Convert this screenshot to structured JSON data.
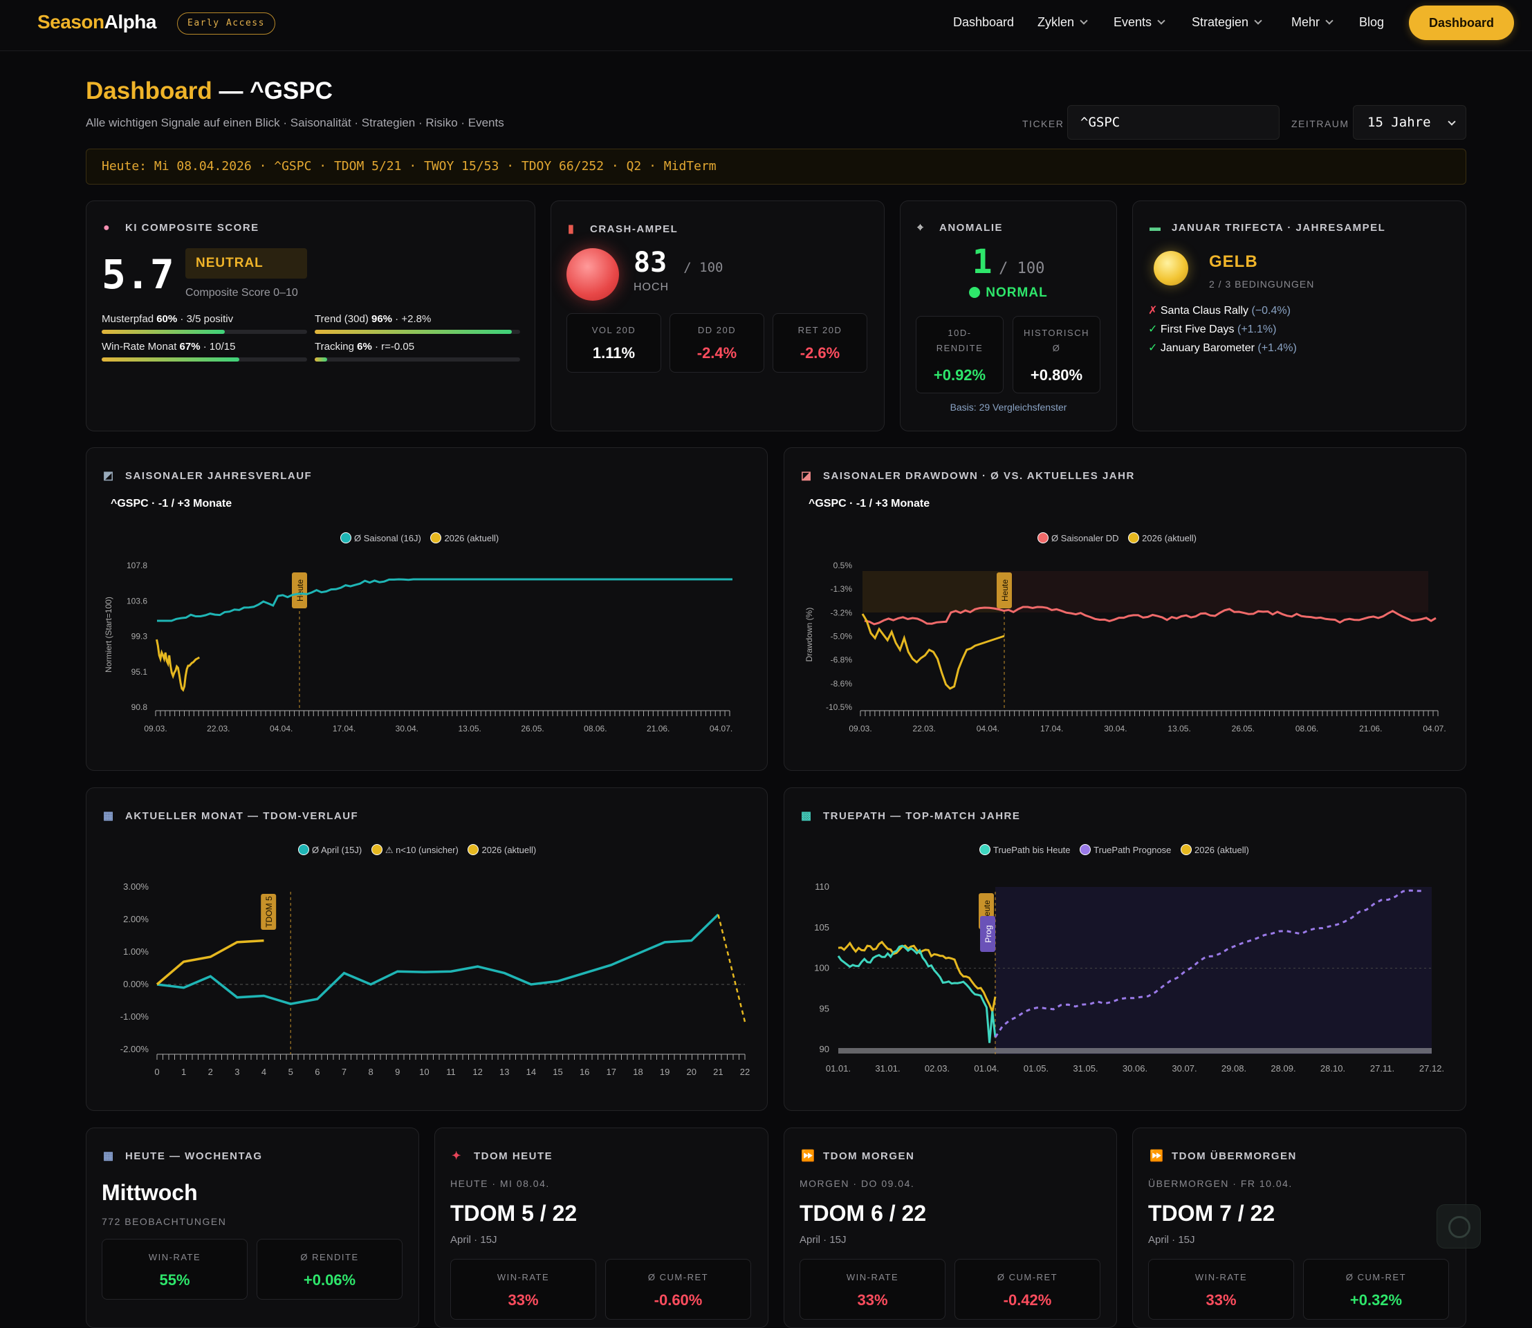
{
  "nav": {
    "logo_a": "Season",
    "logo_b": "Alpha",
    "badge": "Early Access",
    "items": [
      "Dashboard",
      "Zyklen",
      "Events",
      "Strategien",
      "Mehr",
      "Blog"
    ],
    "cta": "Dashboard"
  },
  "header": {
    "title_hl": "Dashboard",
    "title_rest": " — ^GSPC",
    "subtitle": "Alle wichtigen Signale auf einen Blick · Saisonalität · Strategien · Risiko · Events",
    "ticker_label": "TICKER",
    "ticker_value": "^GSPC",
    "zeitraum_label": "ZEITRAUM",
    "zeitraum_value": "15 Jahre"
  },
  "today_bar": "Heute: Mi 08.04.2026 · ^GSPC · TDOM 5/21 · TWOY 15/53 · TDOY 66/252 · Q2 · MidTerm",
  "ki": {
    "title": "KI COMPOSITE SCORE",
    "score": "5.7",
    "badge": "NEUTRAL",
    "caption": "Composite Score 0–10",
    "metrics": [
      {
        "name": "Musterpfad",
        "value": "60%",
        "extra": " · 3/5 positiv",
        "fill": 0.6
      },
      {
        "name": "Trend (30d)",
        "value": "96%",
        "extra": " · +2.8%",
        "fill": 0.96
      },
      {
        "name": "Win-Rate Monat",
        "value": "67%",
        "extra": " · 10/15",
        "fill": 0.67
      },
      {
        "name": "Tracking",
        "value": "6%",
        "extra": " · r=-0.05",
        "fill": 0.06
      }
    ]
  },
  "crash": {
    "title": "CRASH-AMPEL",
    "value": "83",
    "max": "/ 100",
    "level": "HOCH",
    "stats": [
      {
        "label": "VOL 20D",
        "value": "1.11%"
      },
      {
        "label": "DD 20D",
        "value": "-2.4%"
      },
      {
        "label": "RET 20D",
        "value": "-2.6%"
      }
    ]
  },
  "anomalie": {
    "title": "ANOMALIE",
    "value": "1",
    "max": "/ 100",
    "status": "NORMAL",
    "stats": [
      {
        "label1": "10D-",
        "label2": "RENDITE",
        "value": "+0.92%"
      },
      {
        "label1": "HISTORISCH",
        "label2": "Ø",
        "value": "+0.80%"
      }
    ],
    "basis": "Basis: 29 Vergleichsfenster"
  },
  "trifecta": {
    "title": "JANUAR TRIFECTA · JAHRESAMPEL",
    "status": "GELB",
    "conditions": "2 / 3 BEDINGUNGEN",
    "items": [
      {
        "mark": "✗",
        "name": "Santa Claus Rally",
        "value": "(−0.4%)"
      },
      {
        "mark": "✓",
        "name": "First Five Days",
        "value": "(+1.1%)"
      },
      {
        "mark": "✓",
        "name": "January Barometer",
        "value": "(+1.4%)"
      }
    ]
  },
  "season_chart": {
    "title": "SAISONALER JAHRESVERLAUF",
    "subtitle": "^GSPC · -1 / +3 Monate",
    "legend": [
      "Ø Saisonal (16J)",
      "2026 (aktuell)"
    ],
    "ylabel": "Normiert (Start=100)",
    "yticks": [
      "107.8",
      "103.6",
      "99.3",
      "95.1",
      "90.8"
    ],
    "xticks": [
      "09.03.",
      "22.03.",
      "04.04.",
      "17.04.",
      "30.04.",
      "13.05.",
      "26.05.",
      "08.06.",
      "21.06.",
      "04.07."
    ],
    "marker": "Heute"
  },
  "dd_chart": {
    "title": "SAISONALER DRAWDOWN · Ø VS. AKTUELLES JAHR",
    "subtitle": "^GSPC · -1 / +3 Monate",
    "legend": [
      "Ø Saisonaler DD",
      "2026 (aktuell)"
    ],
    "ylabel": "Drawdown (%)",
    "yticks": [
      "0.5%",
      "-1.3%",
      "-3.2%",
      "-5.0%",
      "-6.8%",
      "-8.6%",
      "-10.5%"
    ],
    "xticks": [
      "09.03.",
      "22.03.",
      "04.04.",
      "17.04.",
      "30.04.",
      "13.05.",
      "26.05.",
      "08.06.",
      "21.06.",
      "04.07."
    ],
    "marker": "Heute"
  },
  "tdom_chart": {
    "title": "AKTUELLER MONAT — TDOM-VERLAUF",
    "legend": [
      "Ø April (15J)",
      "⚠ n<10 (unsicher)",
      "2026 (aktuell)"
    ],
    "yticks": [
      "3.00%",
      "2.00%",
      "1.00%",
      "0.00%",
      "-1.00%",
      "-2.00%"
    ],
    "xticks": [
      "0",
      "1",
      "2",
      "3",
      "4",
      "5",
      "6",
      "7",
      "8",
      "9",
      "10",
      "11",
      "12",
      "13",
      "14",
      "15",
      "16",
      "17",
      "18",
      "19",
      "20",
      "21",
      "22"
    ],
    "marker": "TDOM 5"
  },
  "truepath_chart": {
    "title": "TRUEPATH — TOP-MATCH JAHRE",
    "legend": [
      "TruePath bis Heute",
      "TruePath Prognose",
      "2026 (aktuell)"
    ],
    "yticks": [
      "110",
      "105",
      "100",
      "95",
      "90"
    ],
    "xticks": [
      "01.01.",
      "31.01.",
      "02.03.",
      "01.04.",
      "01.05.",
      "31.05.",
      "30.06.",
      "30.07.",
      "29.08.",
      "28.09.",
      "28.10.",
      "27.11.",
      "27.12."
    ],
    "marker_a": "Heute",
    "marker_b": "Prog"
  },
  "bottom": [
    {
      "title": "HEUTE — WOCHENTAG",
      "sub": "",
      "big": "Mittwoch",
      "cap": "772 BEOBACHTUNGEN",
      "s1l": "WIN-RATE",
      "s1v": "55%",
      "s2l": "Ø RENDITE",
      "s2v": "+0.06%"
    },
    {
      "title": "TDOM HEUTE",
      "sub": "HEUTE · MI 08.04.",
      "big": "TDOM 5 / 22",
      "cap": "April · 15J",
      "s1l": "WIN-RATE",
      "s1v": "33%",
      "s2l": "Ø CUM-RET",
      "s2v": "-0.60%"
    },
    {
      "title": "TDOM MORGEN",
      "sub": "MORGEN · DO 09.04.",
      "big": "TDOM 6 / 22",
      "cap": "April · 15J",
      "s1l": "WIN-RATE",
      "s1v": "33%",
      "s2l": "Ø CUM-RET",
      "s2v": "-0.42%"
    },
    {
      "title": "TDOM ÜBERMORGEN",
      "sub": "ÜBERMORGEN · FR 10.04.",
      "big": "TDOM 7 / 22",
      "cap": "April · 15J",
      "s1l": "WIN-RATE",
      "s1v": "33%",
      "s2l": "Ø CUM-RET",
      "s2v": "+0.32%"
    }
  ],
  "colors": {
    "accent": "#f0b429",
    "teal": "#1fb5b5",
    "yellow": "#e6b820",
    "red": "#ff4d5e",
    "green": "#2ee66b",
    "salmon": "#f06a6a",
    "purple": "#9a7ae8"
  }
}
